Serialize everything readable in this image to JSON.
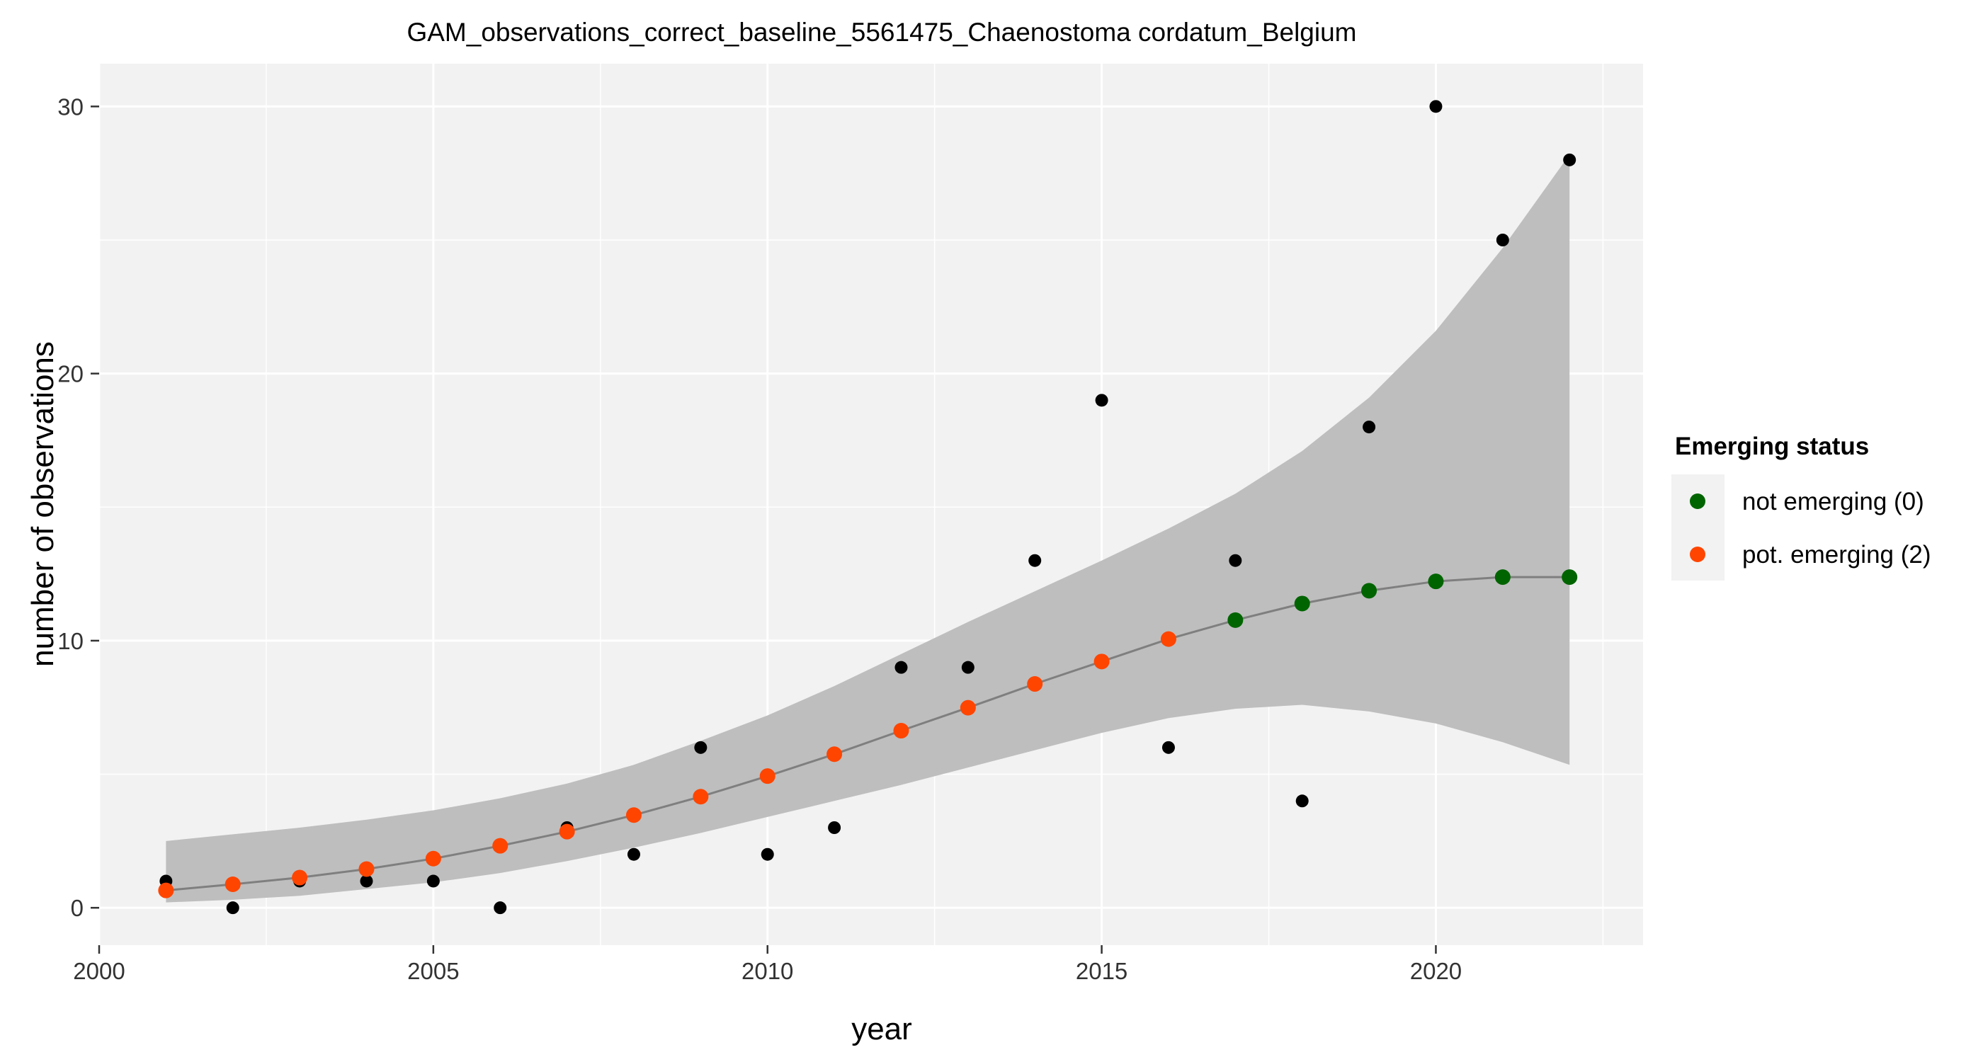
{
  "chart_data": {
    "type": "scatter",
    "title": "GAM_observations_correct_baseline_5561475_Chaenostoma cordatum_Belgium",
    "xlabel": "year",
    "ylabel": "number of observations",
    "xlim": [
      2000,
      2023.1
    ],
    "ylim": [
      -1.4,
      31.6
    ],
    "x_ticks": [
      2000,
      2005,
      2010,
      2015,
      2020
    ],
    "x_tick_labels": [
      "2000",
      "2005",
      "2010",
      "2015",
      "2020"
    ],
    "y_ticks": [
      0,
      10,
      20,
      30
    ],
    "y_tick_labels": [
      "0",
      "10",
      "20",
      "30"
    ],
    "grid": true,
    "legend_position": "right",
    "observed": {
      "x": [
        2001,
        2002,
        2003,
        2004,
        2005,
        2006,
        2007,
        2008,
        2009,
        2010,
        2011,
        2012,
        2013,
        2014,
        2015,
        2016,
        2017,
        2018,
        2019,
        2020,
        2021,
        2022
      ],
      "y": [
        1,
        0,
        1,
        1,
        1,
        0,
        3,
        2,
        6,
        2,
        3,
        9,
        9,
        13,
        19,
        6,
        13,
        4,
        18,
        30,
        25,
        28
      ],
      "color": "#000000"
    },
    "fit": {
      "x": [
        2001,
        2002,
        2003,
        2004,
        2005,
        2006,
        2007,
        2008,
        2009,
        2010,
        2011,
        2012,
        2013,
        2014,
        2015,
        2016,
        2017,
        2018,
        2019,
        2020,
        2021,
        2022
      ],
      "y": [
        0.65,
        0.88,
        1.13,
        1.45,
        1.84,
        2.32,
        2.85,
        3.47,
        4.16,
        4.93,
        5.75,
        6.63,
        7.49,
        8.38,
        9.22,
        10.06,
        10.77,
        11.39,
        11.87,
        12.22,
        12.38,
        12.38
      ],
      "lower": [
        0.2,
        0.3,
        0.45,
        0.7,
        0.95,
        1.3,
        1.75,
        2.25,
        2.8,
        3.4,
        4.0,
        4.6,
        5.25,
        5.9,
        6.55,
        7.1,
        7.45,
        7.6,
        7.35,
        6.9,
        6.2,
        5.35
      ],
      "upper": [
        2.5,
        2.75,
        3.0,
        3.3,
        3.65,
        4.1,
        4.65,
        5.35,
        6.25,
        7.2,
        8.3,
        9.5,
        10.7,
        11.85,
        13.0,
        14.2,
        15.5,
        17.1,
        19.1,
        21.6,
        24.7,
        28.2
      ],
      "status": [
        2,
        2,
        2,
        2,
        2,
        2,
        2,
        2,
        2,
        2,
        2,
        2,
        2,
        2,
        2,
        2,
        0,
        0,
        0,
        0,
        0,
        0
      ],
      "line_color": "#7f7f7f",
      "band_color": "#bebebe"
    },
    "legend": {
      "title": "Emerging status",
      "entries": [
        {
          "status": 0,
          "label": "not emerging (0)",
          "color": "#006400"
        },
        {
          "status": 2,
          "label": "pot. emerging (2)",
          "color": "#ff4500"
        }
      ]
    },
    "colors": {
      "panel_background": "#f2f2f2",
      "grid_line": "#ffffff"
    }
  }
}
